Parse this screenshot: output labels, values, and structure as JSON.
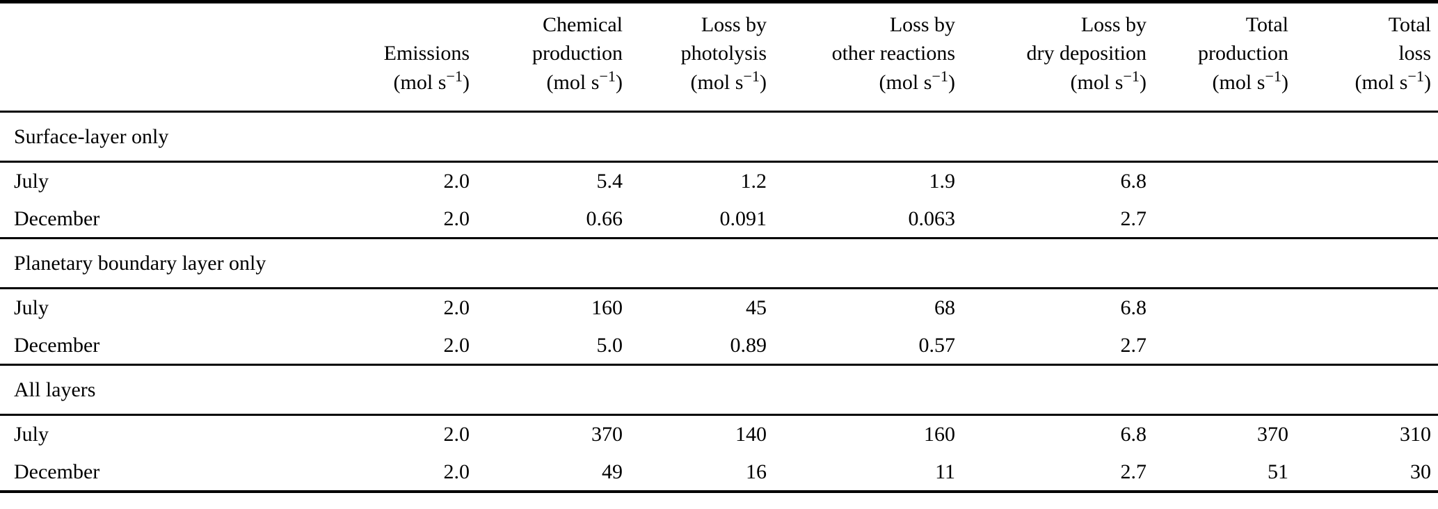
{
  "table": {
    "unit": {
      "pre": "(mol s",
      "sup": "−1",
      "post": ")"
    },
    "columns": [
      {
        "id": "row-label",
        "header_lines": [],
        "has_unit": false
      },
      {
        "id": "emissions",
        "header_lines": [
          "Emissions"
        ],
        "has_unit": true
      },
      {
        "id": "chemical-production",
        "header_lines": [
          "Chemical",
          "production"
        ],
        "has_unit": true
      },
      {
        "id": "loss-by-photolysis",
        "header_lines": [
          "Loss by",
          "photolysis"
        ],
        "has_unit": true
      },
      {
        "id": "loss-by-other-reactions",
        "header_lines": [
          "Loss by",
          "other reactions"
        ],
        "has_unit": true
      },
      {
        "id": "loss-by-dry-deposition",
        "header_lines": [
          "Loss by",
          "dry deposition"
        ],
        "has_unit": true
      },
      {
        "id": "total-production",
        "header_lines": [
          "Total",
          "production"
        ],
        "has_unit": true
      },
      {
        "id": "total-loss",
        "header_lines": [
          "Total",
          "loss"
        ],
        "has_unit": true
      }
    ],
    "sections": [
      {
        "title": "Surface-layer only",
        "rows": [
          {
            "label": "July",
            "values": [
              "2.0",
              "5.4",
              "1.2",
              "1.9",
              "6.8",
              "",
              ""
            ]
          },
          {
            "label": "December",
            "values": [
              "2.0",
              "0.66",
              "0.091",
              "0.063",
              "2.7",
              "",
              ""
            ]
          }
        ]
      },
      {
        "title": "Planetary boundary layer only",
        "rows": [
          {
            "label": "July",
            "values": [
              "2.0",
              "160",
              "45",
              "68",
              "6.8",
              "",
              ""
            ]
          },
          {
            "label": "December",
            "values": [
              "2.0",
              "5.0",
              "0.89",
              "0.57",
              "2.7",
              "",
              ""
            ]
          }
        ]
      },
      {
        "title": "All layers",
        "rows": [
          {
            "label": "July",
            "values": [
              "2.0",
              "370",
              "140",
              "160",
              "6.8",
              "370",
              "310"
            ]
          },
          {
            "label": "December",
            "values": [
              "2.0",
              "49",
              "16",
              "11",
              "2.7",
              "51",
              "30"
            ]
          }
        ]
      }
    ]
  },
  "colors": {
    "text": "#000000",
    "background": "#ffffff",
    "rule": "#000000"
  }
}
